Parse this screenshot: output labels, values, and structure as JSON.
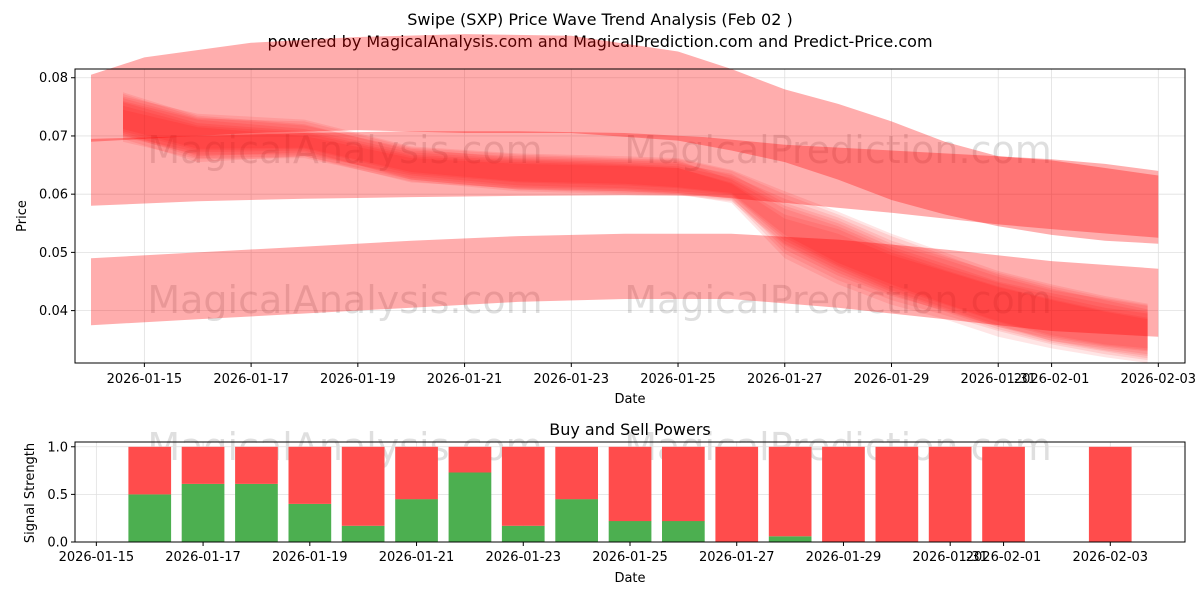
{
  "header": {
    "title": "Swipe (SXP) Price Wave Trend Analysis (Feb 02 )",
    "subtitle": "powered by MagicalAnalysis.com and MagicalPrediction.com and Predict-Price.com"
  },
  "watermarks": [
    "MagicalAnalysis.com",
    "MagicalPrediction.com"
  ],
  "colors": {
    "band": "#ff0000",
    "buy": "#4caf50",
    "sell": "#ff4c4c",
    "grid": "#e0e0e0"
  },
  "chart_data": [
    {
      "type": "area",
      "name": "price-wave-bands",
      "xlabel": "Date",
      "ylabel": "Price",
      "x_start": "2026-01-14",
      "xlim": [
        -0.3,
        20.5
      ],
      "ylim": [
        0.031,
        0.0815
      ],
      "yticks": [
        0.04,
        0.05,
        0.06,
        0.07,
        0.08
      ],
      "ytick_labels": [
        "0.04",
        "0.05",
        "0.06",
        "0.07",
        "0.08"
      ],
      "xticks": [
        1,
        3,
        5,
        7,
        9,
        11,
        13,
        15,
        17,
        18,
        20
      ],
      "xtick_labels": [
        "2026-01-15",
        "2026-01-17",
        "2026-01-19",
        "2026-01-21",
        "2026-01-23",
        "2026-01-25",
        "2026-01-27",
        "2026-01-29",
        "2026-01-31",
        "2026-02-01",
        "2026-02-03"
      ],
      "grid": true,
      "bands": [
        {
          "name": "upper-wide",
          "opacity": 0.32,
          "x": [
            0,
            1,
            3,
            5,
            7,
            9,
            11,
            12,
            13,
            14,
            15,
            16,
            17,
            18,
            19,
            20
          ],
          "upper": [
            0.0805,
            0.0835,
            0.086,
            0.087,
            0.0875,
            0.0872,
            0.0845,
            0.0815,
            0.078,
            0.0755,
            0.0725,
            0.069,
            0.0665,
            0.066,
            0.0652,
            0.064
          ],
          "lower": [
            0.069,
            0.0695,
            0.0705,
            0.071,
            0.0705,
            0.0705,
            0.0692,
            0.0675,
            0.0655,
            0.0625,
            0.059,
            0.0565,
            0.0545,
            0.053,
            0.052,
            0.0515
          ]
        },
        {
          "name": "upper-mid",
          "opacity": 0.32,
          "x": [
            0,
            2,
            4,
            6,
            8,
            10,
            11.5,
            13,
            15,
            17,
            18,
            20
          ],
          "upper": [
            0.0695,
            0.07,
            0.0705,
            0.0708,
            0.0708,
            0.0705,
            0.0698,
            0.0685,
            0.0675,
            0.0665,
            0.0658,
            0.0632
          ],
          "lower": [
            0.058,
            0.0588,
            0.0592,
            0.0595,
            0.0597,
            0.0598,
            0.0597,
            0.0585,
            0.0568,
            0.0548,
            0.054,
            0.0525
          ]
        },
        {
          "name": "lower-wide",
          "opacity": 0.32,
          "x": [
            0,
            2,
            4,
            6,
            8,
            10,
            12,
            14,
            16,
            18,
            20
          ],
          "upper": [
            0.049,
            0.05,
            0.051,
            0.052,
            0.0528,
            0.0532,
            0.0532,
            0.0522,
            0.0505,
            0.0485,
            0.0472
          ],
          "lower": [
            0.0375,
            0.0385,
            0.0395,
            0.0405,
            0.0415,
            0.042,
            0.042,
            0.0405,
            0.0385,
            0.0365,
            0.0355
          ]
        },
        {
          "name": "wave-1",
          "opacity": 0.1,
          "x": [
            0.6,
            2,
            4,
            6,
            8,
            10,
            11,
            12,
            13,
            14,
            15,
            16,
            17,
            18,
            19,
            19.8
          ],
          "upper": [
            0.0775,
            0.0735,
            0.072,
            0.0675,
            0.0665,
            0.066,
            0.0658,
            0.0625,
            0.0575,
            0.0545,
            0.0505,
            0.0475,
            0.0448,
            0.0425,
            0.0405,
            0.0395
          ],
          "lower": [
            0.0695,
            0.0655,
            0.0665,
            0.062,
            0.061,
            0.0605,
            0.06,
            0.0585,
            0.049,
            0.0445,
            0.041,
            0.0385,
            0.0355,
            0.0335,
            0.032,
            0.031
          ]
        },
        {
          "name": "wave-2",
          "opacity": 0.1,
          "x": [
            0.6,
            2,
            4,
            6,
            8,
            10,
            11,
            12,
            13,
            14,
            15,
            16,
            17,
            18,
            19,
            19.8
          ],
          "upper": [
            0.076,
            0.0728,
            0.0712,
            0.0672,
            0.066,
            0.0655,
            0.0652,
            0.0635,
            0.0585,
            0.0555,
            0.0515,
            0.0488,
            0.0458,
            0.0435,
            0.042,
            0.0408
          ],
          "lower": [
            0.0705,
            0.0665,
            0.0672,
            0.0628,
            0.0612,
            0.0608,
            0.0602,
            0.0595,
            0.0505,
            0.046,
            0.0425,
            0.04,
            0.0372,
            0.0352,
            0.0338,
            0.033
          ]
        },
        {
          "name": "wave-3",
          "opacity": 0.1,
          "x": [
            0.6,
            2,
            4,
            6,
            8,
            10,
            11,
            12,
            13,
            14,
            15,
            16,
            17,
            18,
            19,
            19.8
          ],
          "upper": [
            0.0765,
            0.073,
            0.0725,
            0.068,
            0.0668,
            0.0662,
            0.066,
            0.064,
            0.06,
            0.0565,
            0.0528,
            0.0495,
            0.0462,
            0.0438,
            0.0418,
            0.0402
          ],
          "lower": [
            0.0698,
            0.0668,
            0.0668,
            0.0632,
            0.0615,
            0.061,
            0.0605,
            0.0598,
            0.052,
            0.0475,
            0.0435,
            0.0405,
            0.0375,
            0.0348,
            0.0332,
            0.0322
          ]
        },
        {
          "name": "wave-4",
          "opacity": 0.1,
          "x": [
            0.6,
            2,
            4,
            6,
            8,
            10,
            11,
            12,
            13,
            14,
            15,
            16,
            17,
            18,
            19,
            19.8
          ],
          "upper": [
            0.0758,
            0.0722,
            0.0708,
            0.0668,
            0.0658,
            0.0652,
            0.0648,
            0.0628,
            0.058,
            0.055,
            0.051,
            0.048,
            0.045,
            0.043,
            0.0412,
            0.0398
          ],
          "lower": [
            0.07,
            0.0672,
            0.0675,
            0.0625,
            0.0608,
            0.0602,
            0.06,
            0.059,
            0.0498,
            0.0452,
            0.0418,
            0.0392,
            0.0365,
            0.0342,
            0.0325,
            0.0315
          ]
        },
        {
          "name": "wave-5",
          "opacity": 0.1,
          "x": [
            0.6,
            2,
            4,
            6,
            8,
            10,
            11,
            12,
            13,
            14,
            15,
            16,
            17,
            18,
            19,
            19.8
          ],
          "upper": [
            0.0752,
            0.0718,
            0.0705,
            0.0665,
            0.0655,
            0.065,
            0.0645,
            0.062,
            0.0565,
            0.054,
            0.05,
            0.047,
            0.0442,
            0.042,
            0.04,
            0.0388
          ],
          "lower": [
            0.0708,
            0.0675,
            0.0678,
            0.0635,
            0.062,
            0.0615,
            0.061,
            0.06,
            0.0525,
            0.0478,
            0.044,
            0.041,
            0.038,
            0.0355,
            0.034,
            0.0332
          ]
        },
        {
          "name": "wave-6",
          "opacity": 0.1,
          "x": [
            0.6,
            2,
            4,
            6,
            8,
            10,
            11,
            12,
            13,
            14,
            15,
            16,
            17,
            18,
            19,
            19.8
          ],
          "upper": [
            0.0772,
            0.0732,
            0.0718,
            0.0678,
            0.0662,
            0.0658,
            0.0655,
            0.0632,
            0.0592,
            0.056,
            0.052,
            0.0492,
            0.0465,
            0.0442,
            0.0422,
            0.041
          ],
          "lower": [
            0.069,
            0.066,
            0.0662,
            0.0622,
            0.0605,
            0.06,
            0.0598,
            0.0588,
            0.0512,
            0.0465,
            0.0428,
            0.0398,
            0.0368,
            0.0345,
            0.033,
            0.0318
          ]
        },
        {
          "name": "wave-7",
          "opacity": 0.1,
          "x": [
            0.6,
            2,
            4,
            6,
            8,
            10,
            11,
            12,
            13,
            14,
            15,
            16,
            17,
            18,
            19,
            19.8
          ],
          "upper": [
            0.0745,
            0.0715,
            0.07,
            0.0662,
            0.0652,
            0.0648,
            0.0645,
            0.0618,
            0.0558,
            0.0532,
            0.0495,
            0.0468,
            0.044,
            0.0418,
            0.0398,
            0.0385
          ],
          "lower": [
            0.0712,
            0.0678,
            0.068,
            0.0638,
            0.0622,
            0.0618,
            0.0612,
            0.0602,
            0.053,
            0.0482,
            0.0445,
            0.0412,
            0.0382,
            0.0358,
            0.0342,
            0.0335
          ]
        },
        {
          "name": "wave-8",
          "opacity": 0.1,
          "x": [
            0.6,
            2,
            4,
            6,
            8,
            10,
            11,
            12,
            13,
            14,
            15,
            16,
            17,
            18,
            19,
            19.8
          ],
          "upper": [
            0.0768,
            0.0738,
            0.0728,
            0.0682,
            0.067,
            0.0665,
            0.0662,
            0.0642,
            0.0605,
            0.057,
            0.0532,
            0.05,
            0.0468,
            0.0445,
            0.0425,
            0.0412
          ],
          "lower": [
            0.0702,
            0.0662,
            0.0665,
            0.0625,
            0.0608,
            0.0605,
            0.0602,
            0.0592,
            0.0515,
            0.047,
            0.0432,
            0.0402,
            0.0372,
            0.0348,
            0.0335,
            0.0325
          ]
        }
      ]
    },
    {
      "type": "bar",
      "name": "buy-sell-powers",
      "title": "Buy and Sell Powers",
      "xlabel": "Date",
      "ylabel": "Signal Strength",
      "x_start": "2026-01-14",
      "xlim": [
        -0.4,
        20.4
      ],
      "ylim": [
        0,
        1.05
      ],
      "yticks": [
        0.0,
        0.5,
        1.0
      ],
      "ytick_labels": [
        "0.0",
        "0.5",
        "1.0"
      ],
      "xticks": [
        0,
        2,
        4,
        6,
        8,
        10,
        12,
        14,
        16,
        17,
        19
      ],
      "xtick_labels": [
        "2026-01-15",
        "2026-01-17",
        "2026-01-19",
        "2026-01-21",
        "2026-01-23",
        "2026-01-25",
        "2026-01-27",
        "2026-01-29",
        "2026-01-31",
        "2026-02-01",
        "2026-02-03"
      ],
      "x_offset": 1,
      "grid": true,
      "series": [
        {
          "name": "Buy",
          "color": "#4caf50",
          "x": [
            2,
            3,
            4,
            5,
            6,
            7,
            8,
            9,
            10,
            11,
            12,
            13,
            14,
            15,
            16,
            17,
            18,
            20
          ],
          "values": [
            0.5,
            0.61,
            0.61,
            0.4,
            0.17,
            0.45,
            0.73,
            0.17,
            0.45,
            0.22,
            0.22,
            0.0,
            0.06,
            0.0,
            0.0,
            0.0,
            0.0,
            0.0
          ]
        },
        {
          "name": "Sell",
          "color": "#ff4c4c",
          "x": [
            2,
            3,
            4,
            5,
            6,
            7,
            8,
            9,
            10,
            11,
            12,
            13,
            14,
            15,
            16,
            17,
            18,
            20
          ],
          "values": [
            0.5,
            0.39,
            0.39,
            0.6,
            0.83,
            0.55,
            0.27,
            0.83,
            0.55,
            0.78,
            0.78,
            1.0,
            0.94,
            1.0,
            1.0,
            1.0,
            1.0,
            1.0
          ]
        }
      ]
    }
  ]
}
